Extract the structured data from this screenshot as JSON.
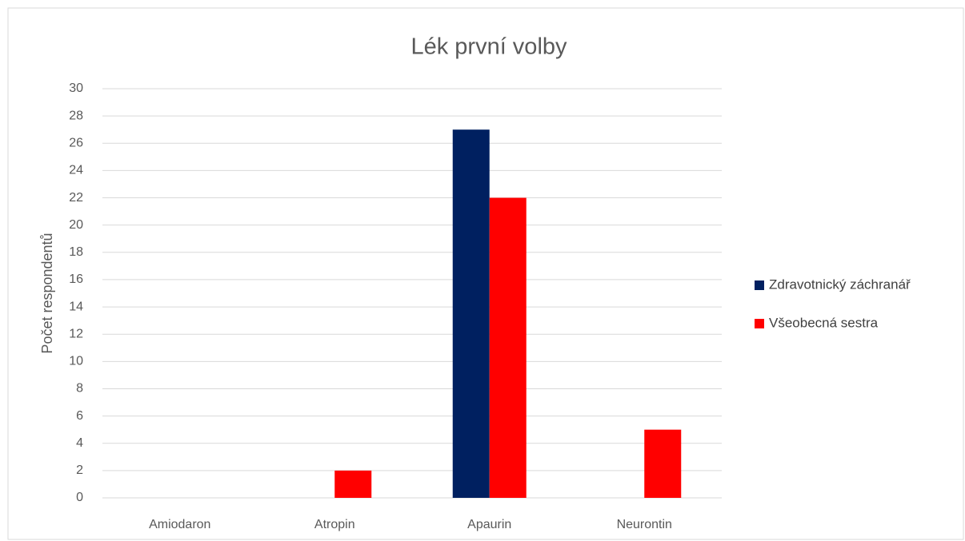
{
  "chart_data": {
    "type": "bar",
    "title": "Lék první volby",
    "y_label": "Počet respondentů",
    "categories": [
      "Amiodaron",
      "Atropin",
      "Apaurin",
      "Neurontin"
    ],
    "series": [
      {
        "name": "Zdravotnický záchranář",
        "color": "#002060",
        "values": [
          0,
          0,
          27,
          0
        ]
      },
      {
        "name": "Všeobecná sestra",
        "color": "#ff0000",
        "values": [
          0,
          2,
          22,
          5
        ]
      }
    ],
    "ylim": [
      0,
      30
    ],
    "yticks": [
      0,
      2,
      4,
      6,
      8,
      10,
      12,
      14,
      16,
      18,
      20,
      22,
      24,
      26,
      28,
      30
    ],
    "grid": true,
    "legend": "right"
  }
}
